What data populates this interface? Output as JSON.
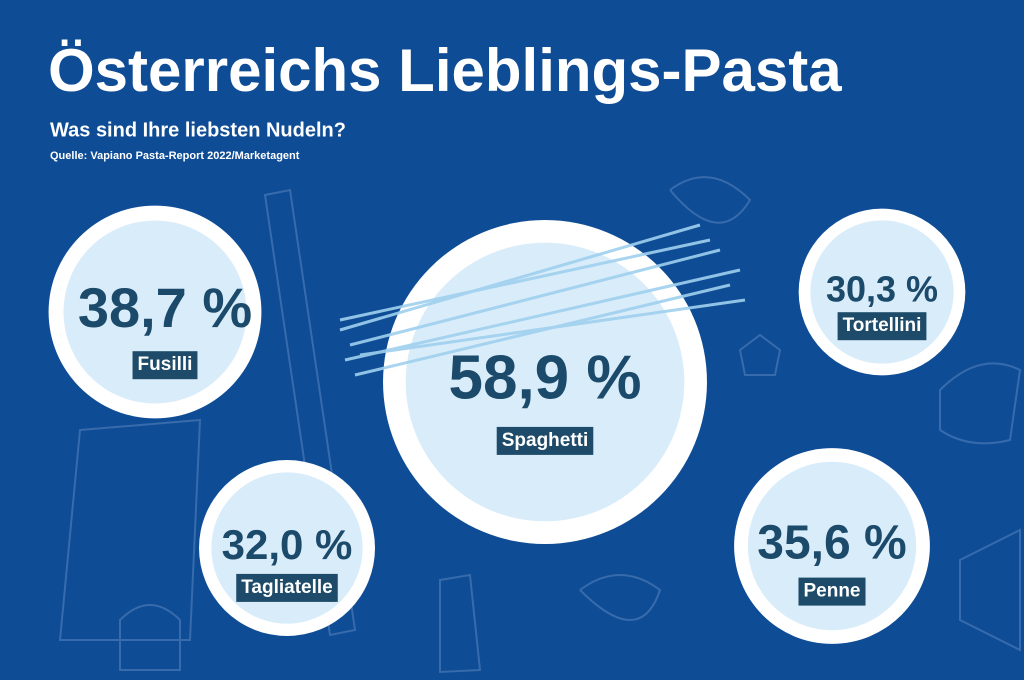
{
  "chart_data": {
    "type": "bubble",
    "title": "Österreichs Lieblings-Pasta",
    "subtitle": "Was sind Ihre liebsten Nudeln?",
    "source": "Quelle: Vapiano Pasta-Report 2022/Marketagent",
    "categories": [
      "Fusilli",
      "Spaghetti",
      "Tortellini",
      "Tagliatelle",
      "Penne"
    ],
    "values": [
      38.7,
      58.9,
      30.3,
      32.0,
      35.6
    ],
    "value_labels": [
      "38,7 %",
      "58,9 %",
      "30,3 %",
      "32,0 %",
      "35,6 %"
    ],
    "color": "#d9ecfa"
  }
}
